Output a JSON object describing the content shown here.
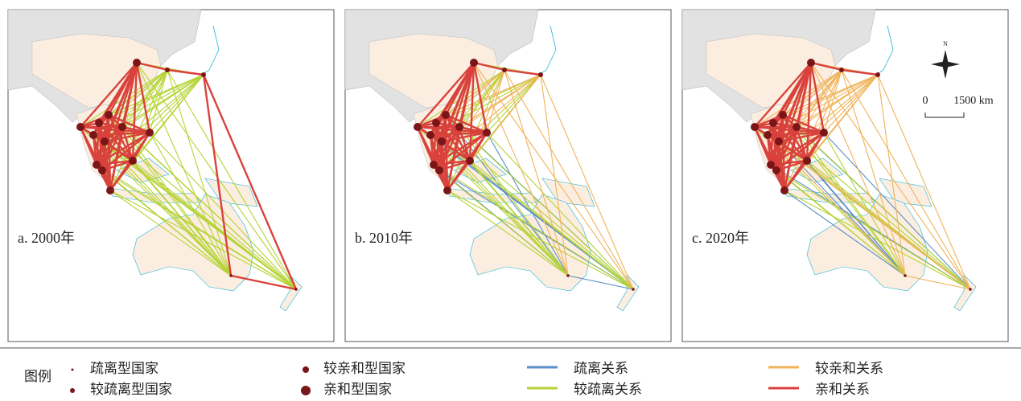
{
  "panels": [
    {
      "label": "a. 2000年"
    },
    {
      "label": "b. 2010年"
    },
    {
      "label": "c. 2020年"
    }
  ],
  "legend": {
    "title": "图例",
    "items": [
      {
        "label": "疏离型国家"
      },
      {
        "label": "较疏离型国家"
      },
      {
        "label": "较亲和型国家"
      },
      {
        "label": "亲和型国家"
      },
      {
        "label": "疏离关系"
      },
      {
        "label": "较疏离关系"
      },
      {
        "label": "较亲和关系"
      },
      {
        "label": "亲和关系"
      }
    ]
  },
  "scale": {
    "start": "0",
    "end": "1500 km"
  },
  "compass": "N"
}
